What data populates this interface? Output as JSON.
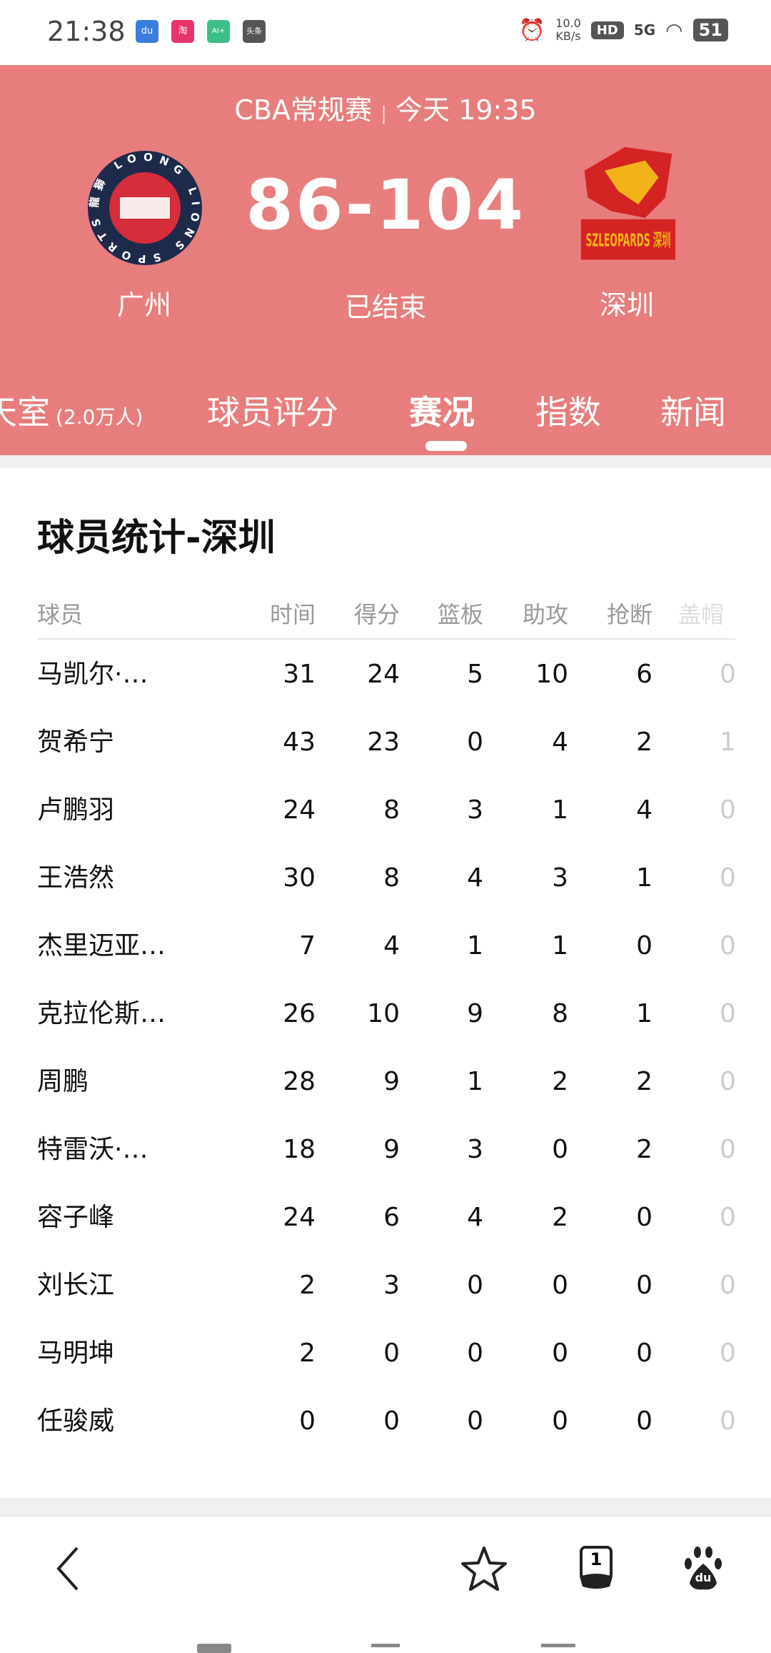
{
  "status_bar": {
    "time": "21:38",
    "apps": [
      "du",
      "淘",
      "AI+",
      "头条"
    ],
    "net_speed": "10.0",
    "net_unit": "KB/s",
    "hd": "HD",
    "signal": "5G",
    "battery": "51"
  },
  "header": {
    "league": "CBA常规赛",
    "separator": "|",
    "datetime": "今天 19:35",
    "score": "86-104",
    "home_team": "广州",
    "away_team": "深圳",
    "match_status": "已结束",
    "home_logo_text": "龍獅 LOONG LIONS SPORTS",
    "away_logo_text": "SZLEOPARDS 深圳",
    "bg_color": "#e87d7d"
  },
  "tabs": [
    {
      "label": "天室",
      "count": "(2.0万人)"
    },
    {
      "label": "球员评分"
    },
    {
      "label": "赛况",
      "active": true
    },
    {
      "label": "指数"
    },
    {
      "label": "新闻"
    }
  ],
  "stats": {
    "title": "球员统计-深圳",
    "columns": [
      "球员",
      "时间",
      "得分",
      "篮板",
      "助攻",
      "抢断",
      "盖帽"
    ],
    "rows": [
      [
        "马凯尔·…",
        "31",
        "24",
        "5",
        "10",
        "6",
        "0"
      ],
      [
        "贺希宁",
        "43",
        "23",
        "0",
        "4",
        "2",
        "1"
      ],
      [
        "卢鹏羽",
        "24",
        "8",
        "3",
        "1",
        "4",
        "0"
      ],
      [
        "王浩然",
        "30",
        "8",
        "4",
        "3",
        "1",
        "0"
      ],
      [
        "杰里迈亚…",
        "7",
        "4",
        "1",
        "1",
        "0",
        "0"
      ],
      [
        "克拉伦斯…",
        "26",
        "10",
        "9",
        "8",
        "1",
        "0"
      ],
      [
        "周鹏",
        "28",
        "9",
        "1",
        "2",
        "2",
        "0"
      ],
      [
        "特雷沃·…",
        "18",
        "9",
        "3",
        "0",
        "2",
        "0"
      ],
      [
        "容子峰",
        "24",
        "6",
        "4",
        "2",
        "0",
        "0"
      ],
      [
        "刘长江",
        "2",
        "3",
        "0",
        "0",
        "0",
        "0"
      ],
      [
        "马明坤",
        "2",
        "0",
        "0",
        "0",
        "0",
        "0"
      ],
      [
        "任骏威",
        "0",
        "0",
        "0",
        "0",
        "0",
        "0"
      ]
    ]
  },
  "toolbar": {
    "tab_count": "1",
    "baidu_label": "du"
  }
}
